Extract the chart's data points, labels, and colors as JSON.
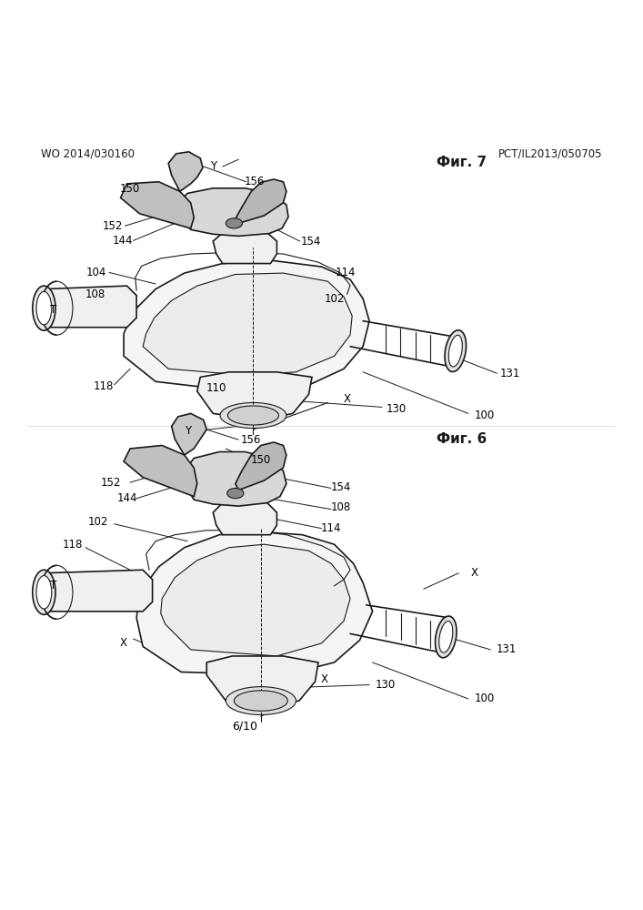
{
  "header_left": "WO 2014/030160",
  "header_right": "PCT/IL2013/050705",
  "page_num": "6/10",
  "fig6_label": "Фиг. 6",
  "fig7_label": "Фиг. 7",
  "bg_color": "#ffffff",
  "line_color": "#1a1a1a"
}
